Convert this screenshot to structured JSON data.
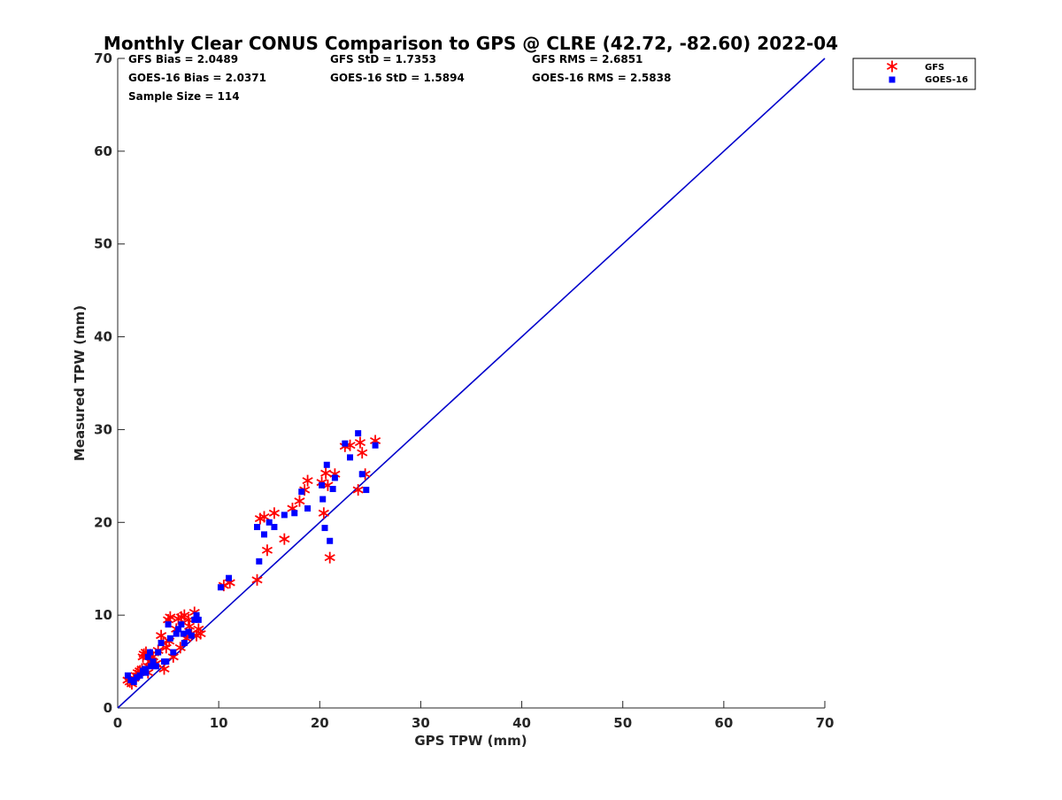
{
  "chart_data": {
    "type": "scatter",
    "title": "Monthly Clear CONUS Comparison to GPS @ CLRE (42.72, -82.60) 2022-04",
    "xlabel": "GPS TPW (mm)",
    "ylabel": "Measured TPW (mm)",
    "xlim": [
      0,
      70
    ],
    "ylim": [
      0,
      70
    ],
    "xticks": [
      0,
      10,
      20,
      30,
      40,
      50,
      60,
      70
    ],
    "yticks": [
      0,
      10,
      20,
      30,
      40,
      50,
      60,
      70
    ],
    "grid": false,
    "legend_position": "outside-top-right",
    "stats": {
      "gfs_bias": "GFS Bias = 2.0489",
      "gfs_std": "GFS StD = 1.7353",
      "gfs_rms": "GFS RMS = 2.6851",
      "goes_bias": "GOES-16 Bias = 2.0371",
      "goes_std": "GOES-16 StD = 1.5894",
      "goes_rms": "GOES-16 RMS = 2.5838",
      "sample_size": "Sample Size = 114"
    },
    "reference_line": {
      "x": [
        0,
        70
      ],
      "y": [
        0,
        70
      ],
      "color": "#0000cc"
    },
    "series": [
      {
        "name": "GFS",
        "marker": "asterisk",
        "color": "#ff0000",
        "x": [
          1.0,
          1.2,
          1.4,
          1.6,
          1.8,
          2.0,
          2.2,
          2.4,
          2.6,
          2.8,
          3.0,
          3.2,
          3.5,
          3.8,
          4.0,
          4.3,
          4.6,
          5.0,
          5.2,
          5.5,
          5.8,
          6.0,
          6.3,
          6.6,
          7.0,
          7.3,
          7.6,
          7.8,
          8.0,
          8.2,
          4.5,
          4.8,
          5.1,
          3.0,
          2.5,
          6.8,
          7.1,
          6.2,
          10.5,
          11.1,
          13.8,
          14.1,
          14.5,
          14.8,
          15.5,
          16.5,
          17.3,
          18.0,
          18.5,
          18.8,
          20.2,
          20.4,
          20.6,
          20.8,
          21.0,
          21.5,
          22.5,
          23.0,
          23.8,
          24.0,
          24.2,
          24.5,
          25.5
        ],
        "y": [
          3.0,
          2.8,
          2.6,
          3.2,
          3.5,
          3.8,
          4.0,
          4.2,
          5.8,
          6.0,
          4.5,
          5.0,
          5.5,
          4.8,
          6.2,
          7.8,
          4.2,
          9.5,
          9.8,
          5.5,
          8.5,
          9.6,
          9.8,
          10.0,
          9.5,
          8.0,
          10.3,
          7.8,
          8.5,
          8.0,
          7.0,
          6.5,
          7.2,
          3.8,
          5.5,
          7.5,
          8.8,
          6.5,
          13.2,
          13.5,
          13.8,
          20.4,
          20.6,
          17.0,
          21.0,
          18.2,
          21.5,
          22.3,
          23.5,
          24.5,
          24.3,
          21.0,
          25.3,
          24.0,
          16.2,
          25.2,
          28.2,
          28.3,
          23.5,
          28.6,
          27.5,
          25.2,
          28.8
        ]
      },
      {
        "name": "GOES-16",
        "marker": "square",
        "color": "#0000ff",
        "x": [
          1.0,
          1.3,
          1.6,
          1.9,
          2.2,
          2.5,
          2.8,
          3.0,
          3.2,
          3.5,
          3.8,
          4.0,
          4.3,
          4.6,
          5.0,
          5.2,
          5.5,
          5.8,
          6.0,
          6.3,
          6.6,
          7.0,
          7.3,
          7.6,
          7.8,
          8.0,
          4.8,
          3.3,
          2.7,
          6.5,
          10.2,
          11.0,
          13.8,
          14.0,
          14.5,
          15.0,
          15.5,
          16.5,
          17.5,
          18.2,
          18.8,
          20.3,
          20.5,
          20.7,
          21.0,
          21.5,
          22.5,
          23.0,
          23.8,
          24.2,
          24.6,
          25.5,
          20.2,
          21.3
        ],
        "y": [
          3.5,
          3.0,
          2.8,
          3.3,
          3.5,
          4.0,
          3.8,
          5.5,
          6.0,
          5.0,
          4.5,
          6.0,
          7.0,
          5.0,
          9.0,
          7.5,
          6.0,
          8.0,
          8.5,
          9.0,
          7.0,
          8.2,
          7.8,
          9.5,
          10.0,
          9.5,
          5.0,
          4.5,
          4.2,
          8.0,
          13.0,
          14.0,
          19.5,
          15.8,
          18.7,
          20.0,
          19.5,
          20.8,
          21.0,
          23.3,
          21.5,
          22.5,
          19.4,
          26.2,
          18.0,
          24.8,
          28.5,
          27.0,
          29.6,
          25.2,
          23.5,
          28.3,
          24.0,
          23.6
        ]
      }
    ]
  }
}
